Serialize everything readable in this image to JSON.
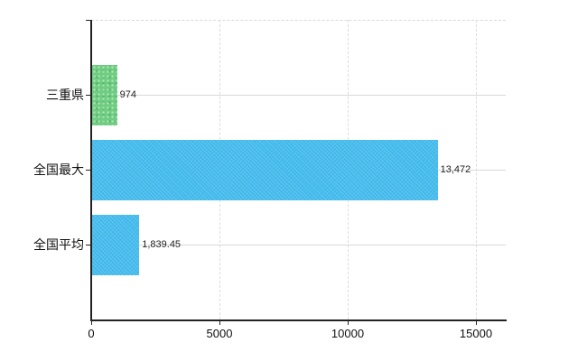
{
  "chart_data": {
    "type": "bar",
    "orientation": "horizontal",
    "title": "",
    "xlabel": "",
    "ylabel": "",
    "categories": [
      "三重県",
      "全国最大",
      "全国平均"
    ],
    "values": [
      974,
      13472,
      1839.45
    ],
    "value_labels": [
      "974",
      "13,472",
      "1,839.45"
    ],
    "series": [
      {
        "name": "三重県",
        "value": 974,
        "color": "#6ecd80"
      },
      {
        "name": "全国最大",
        "value": 13472,
        "color": "#45bdee"
      },
      {
        "name": "全国平均",
        "value": 1839.45,
        "color": "#45bdee"
      }
    ],
    "bar_colors": [
      "#6ecd80",
      "#45bdee",
      "#45bdee"
    ],
    "x_ticks": [
      0,
      5000,
      10000,
      15000
    ],
    "x_tick_labels": [
      "0",
      "5000",
      "10000",
      "15000"
    ],
    "xlim": [
      0,
      16160
    ],
    "grid": true,
    "legend_position": "none"
  },
  "colors": {
    "bar_green": "#6ecd80",
    "bar_blue": "#45bdee",
    "axis": "#222222",
    "gridline": "#d9d9d9",
    "text": "#111111"
  }
}
